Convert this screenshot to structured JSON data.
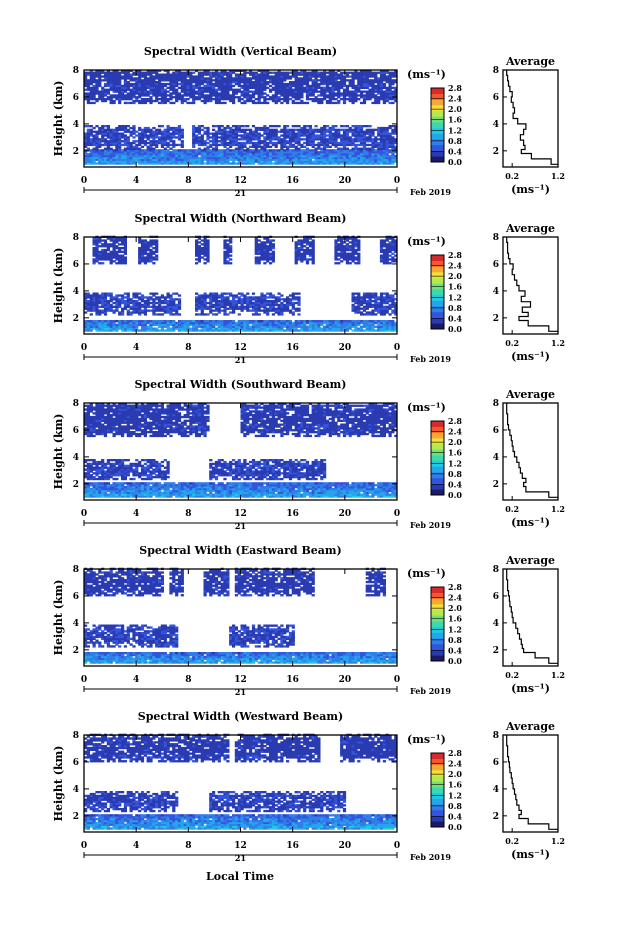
{
  "figure": {
    "xlabel": "Local Time",
    "date_label": "Feb 2019",
    "day_label": "21",
    "ylabel": "Height (km)",
    "colorbar_unit": "(ms⁻¹)",
    "profile_title": "Average",
    "profile_xlabel": "(ms⁻¹)",
    "colors": {
      "colormap": [
        "#1a1a66",
        "#2a3ab0",
        "#3355dd",
        "#2f7fe8",
        "#23a6ec",
        "#20c8e0",
        "#3cd9b0",
        "#6fe07a",
        "#b8e84a",
        "#f2e03a",
        "#f7a830",
        "#f05a2a",
        "#d82a2a"
      ]
    }
  },
  "chart_data": [
    {
      "type": "heatmap",
      "title": "Spectral Width (Vertical Beam)",
      "x_ticks": [
        "0",
        "4",
        "8",
        "12",
        "16",
        "20",
        "0"
      ],
      "y_ticks": [
        "2",
        "4",
        "6",
        "8"
      ],
      "ylim": [
        0.8,
        8
      ],
      "xlim": [
        0,
        24
      ],
      "colorbar_ticks": [
        "0.0",
        "0.4",
        "0.8",
        "1.2",
        "1.6",
        "2.0",
        "2.4",
        "2.8"
      ],
      "colorbar_range": [
        0,
        2.8
      ],
      "bands": [
        {
          "ymin": 1.0,
          "ymax": 2.1,
          "value": 0.55,
          "coverage": [
            [
              0,
              24
            ]
          ]
        },
        {
          "ymin": 2.1,
          "ymax": 3.8,
          "value": 0.4,
          "coverage": [
            [
              0,
              7.5
            ],
            [
              8.2,
              24
            ]
          ]
        },
        {
          "ymin": 5.5,
          "ymax": 8.0,
          "value": 0.35,
          "coverage": [
            [
              0,
              24
            ]
          ]
        }
      ],
      "profile": {
        "xlim": [
          0,
          1.2
        ],
        "x_ticks": [
          "0.2",
          "1.2"
        ],
        "y_ticks": [
          "2",
          "4",
          "6",
          "8"
        ],
        "heights": [
          1.0,
          1.4,
          1.8,
          2.1,
          2.4,
          2.8,
          3.2,
          3.6,
          4.0,
          4.4,
          4.8,
          5.2,
          5.6,
          6.0,
          6.4,
          6.8,
          7.2,
          7.6,
          8.0
        ],
        "values": [
          1.2,
          1.05,
          0.62,
          0.4,
          0.48,
          0.45,
          0.38,
          0.45,
          0.5,
          0.32,
          0.22,
          0.25,
          0.22,
          0.18,
          0.2,
          0.15,
          0.12,
          0.1,
          0.08
        ]
      }
    },
    {
      "type": "heatmap",
      "title": "Spectral Width (Northward Beam)",
      "x_ticks": [
        "0",
        "4",
        "8",
        "12",
        "16",
        "20",
        "0"
      ],
      "y_ticks": [
        "2",
        "4",
        "6",
        "8"
      ],
      "ylim": [
        0.8,
        8
      ],
      "xlim": [
        0,
        24
      ],
      "colorbar_ticks": [
        "0.0",
        "0.4",
        "0.8",
        "1.2",
        "1.6",
        "2.0",
        "2.4",
        "2.8"
      ],
      "colorbar_range": [
        0,
        2.8
      ],
      "bands": [
        {
          "ymin": 1.0,
          "ymax": 1.8,
          "value": 0.6,
          "coverage": [
            [
              0,
              24
            ]
          ]
        },
        {
          "ymin": 2.2,
          "ymax": 3.8,
          "value": 0.4,
          "coverage": [
            [
              0,
              7.2
            ],
            [
              8.5,
              16.5
            ],
            [
              20.5,
              24
            ]
          ]
        },
        {
          "ymin": 6.0,
          "ymax": 8.0,
          "value": 0.35,
          "coverage": [
            [
              0.5,
              3.2
            ],
            [
              4.0,
              5.5
            ],
            [
              8.5,
              9.5
            ],
            [
              10.5,
              11.2
            ],
            [
              13.0,
              14.5
            ],
            [
              16.0,
              17.5
            ],
            [
              19.0,
              21.0
            ],
            [
              22.5,
              24
            ]
          ]
        }
      ],
      "profile": {
        "xlim": [
          0,
          1.2
        ],
        "x_ticks": [
          "0.2",
          "1.2"
        ],
        "y_ticks": [
          "2",
          "4",
          "6",
          "8"
        ],
        "heights": [
          1.0,
          1.4,
          1.8,
          2.1,
          2.4,
          2.8,
          3.2,
          3.6,
          4.0,
          4.4,
          4.8,
          5.2,
          5.6,
          6.0,
          6.4,
          6.8,
          7.2,
          7.6,
          8.0
        ],
        "values": [
          1.2,
          1.0,
          0.55,
          0.35,
          0.55,
          0.42,
          0.6,
          0.4,
          0.48,
          0.35,
          0.3,
          0.25,
          0.2,
          0.22,
          0.15,
          0.12,
          0.1,
          0.1,
          0.08
        ]
      }
    },
    {
      "type": "heatmap",
      "title": "Spectral Width (Southward Beam)",
      "x_ticks": [
        "0",
        "4",
        "8",
        "12",
        "16",
        "20",
        "0"
      ],
      "y_ticks": [
        "2",
        "4",
        "6",
        "8"
      ],
      "ylim": [
        0.8,
        8
      ],
      "xlim": [
        0,
        24
      ],
      "colorbar_ticks": [
        "0.0",
        "0.4",
        "0.8",
        "1.2",
        "1.6",
        "2.0",
        "2.4",
        "2.8"
      ],
      "colorbar_range": [
        0,
        2.8
      ],
      "bands": [
        {
          "ymin": 1.0,
          "ymax": 2.0,
          "value": 0.6,
          "coverage": [
            [
              0,
              24
            ]
          ]
        },
        {
          "ymin": 2.3,
          "ymax": 3.8,
          "value": 0.4,
          "coverage": [
            [
              0,
              6.5
            ],
            [
              9.5,
              18.5
            ]
          ]
        },
        {
          "ymin": 5.5,
          "ymax": 8.0,
          "value": 0.35,
          "coverage": [
            [
              0,
              9.5
            ],
            [
              12.0,
              24
            ]
          ]
        }
      ],
      "profile": {
        "xlim": [
          0,
          1.2
        ],
        "x_ticks": [
          "0.2",
          "1.2"
        ],
        "y_ticks": [
          "2",
          "4",
          "6",
          "8"
        ],
        "heights": [
          1.0,
          1.4,
          1.8,
          2.1,
          2.4,
          2.8,
          3.2,
          3.6,
          4.0,
          4.4,
          4.8,
          5.2,
          5.6,
          6.0,
          6.4,
          6.8,
          7.2,
          7.6,
          8.0
        ],
        "values": [
          1.2,
          1.0,
          0.5,
          0.45,
          0.5,
          0.42,
          0.38,
          0.35,
          0.3,
          0.25,
          0.22,
          0.2,
          0.18,
          0.15,
          0.12,
          0.1,
          0.1,
          0.08,
          0.08
        ]
      }
    },
    {
      "type": "heatmap",
      "title": "Spectral Width (Eastward Beam)",
      "x_ticks": [
        "0",
        "4",
        "8",
        "12",
        "16",
        "20",
        "0"
      ],
      "y_ticks": [
        "2",
        "4",
        "6",
        "8"
      ],
      "ylim": [
        0.8,
        8
      ],
      "xlim": [
        0,
        24
      ],
      "colorbar_ticks": [
        "0.0",
        "0.4",
        "0.8",
        "1.2",
        "1.6",
        "2.0",
        "2.4",
        "2.8"
      ],
      "colorbar_range": [
        0,
        2.8
      ],
      "bands": [
        {
          "ymin": 1.0,
          "ymax": 1.8,
          "value": 0.6,
          "coverage": [
            [
              0,
              24
            ]
          ]
        },
        {
          "ymin": 2.2,
          "ymax": 3.8,
          "value": 0.4,
          "coverage": [
            [
              0,
              7.0
            ],
            [
              11.0,
              16.0
            ]
          ]
        },
        {
          "ymin": 6.0,
          "ymax": 8.0,
          "value": 0.35,
          "coverage": [
            [
              0,
              6.0
            ],
            [
              6.5,
              7.5
            ],
            [
              9.0,
              11.0
            ],
            [
              11.5,
              17.5
            ],
            [
              21.5,
              23.0
            ]
          ]
        }
      ],
      "profile": {
        "xlim": [
          0,
          1.2
        ],
        "x_ticks": [
          "0.2",
          "1.2"
        ],
        "y_ticks": [
          "2",
          "4",
          "6",
          "8"
        ],
        "heights": [
          1.0,
          1.4,
          1.8,
          2.1,
          2.4,
          2.8,
          3.2,
          3.6,
          4.0,
          4.4,
          4.8,
          5.2,
          5.6,
          6.0,
          6.4,
          6.8,
          7.2,
          7.6,
          8.0
        ],
        "values": [
          1.2,
          1.0,
          0.7,
          0.45,
          0.42,
          0.4,
          0.36,
          0.32,
          0.28,
          0.22,
          0.2,
          0.18,
          0.15,
          0.14,
          0.12,
          0.1,
          0.1,
          0.08,
          0.08
        ]
      }
    },
    {
      "type": "heatmap",
      "title": "Spectral Width (Westward Beam)",
      "x_ticks": [
        "0",
        "4",
        "8",
        "12",
        "16",
        "20",
        "0"
      ],
      "y_ticks": [
        "2",
        "4",
        "6",
        "8"
      ],
      "ylim": [
        0.8,
        8
      ],
      "xlim": [
        0,
        24
      ],
      "colorbar_ticks": [
        "0.0",
        "0.4",
        "0.8",
        "1.2",
        "1.6",
        "2.0",
        "2.4",
        "2.8"
      ],
      "colorbar_range": [
        0,
        2.8
      ],
      "bands": [
        {
          "ymin": 1.0,
          "ymax": 2.0,
          "value": 0.6,
          "coverage": [
            [
              0,
              24
            ]
          ]
        },
        {
          "ymin": 2.3,
          "ymax": 3.8,
          "value": 0.4,
          "coverage": [
            [
              0,
              7.0
            ],
            [
              9.5,
              20.0
            ]
          ]
        },
        {
          "ymin": 6.0,
          "ymax": 8.0,
          "value": 0.35,
          "coverage": [
            [
              0,
              11.0
            ],
            [
              11.5,
              18.0
            ],
            [
              19.5,
              24
            ]
          ]
        }
      ],
      "profile": {
        "xlim": [
          0,
          1.2
        ],
        "x_ticks": [
          "0.2",
          "1.2"
        ],
        "y_ticks": [
          "2",
          "4",
          "6",
          "8"
        ],
        "heights": [
          1.0,
          1.4,
          1.8,
          2.1,
          2.4,
          2.8,
          3.2,
          3.6,
          4.0,
          4.4,
          4.8,
          5.2,
          5.6,
          6.0,
          6.4,
          6.8,
          7.2,
          7.6,
          8.0
        ],
        "values": [
          1.2,
          1.0,
          0.55,
          0.35,
          0.4,
          0.35,
          0.3,
          0.28,
          0.25,
          0.22,
          0.2,
          0.18,
          0.15,
          0.14,
          0.12,
          0.1,
          0.1,
          0.08,
          0.08
        ]
      }
    }
  ]
}
